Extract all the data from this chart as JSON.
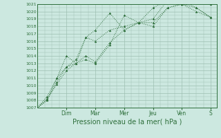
{
  "title": "",
  "xlabel": "Pression niveau de la mer( hPa )",
  "ylabel": "",
  "bg_color": "#cce8e0",
  "grid_color": "#9dbfb2",
  "line_color": "#2d6e3a",
  "ylim": [
    1007,
    1021
  ],
  "xlim": [
    0,
    6.2
  ],
  "yticks": [
    1007,
    1008,
    1009,
    1010,
    1011,
    1012,
    1013,
    1014,
    1015,
    1016,
    1017,
    1018,
    1019,
    1020,
    1021
  ],
  "day_labels": [
    "Dim",
    "Mar",
    "Mer",
    "Jeu",
    "Ven",
    "S"
  ],
  "day_positions": [
    1.0,
    2.0,
    3.0,
    4.0,
    5.0,
    6.0
  ],
  "lines": [
    {
      "x": [
        0.0,
        0.33,
        0.67,
        1.0,
        1.33,
        1.67,
        2.0,
        2.5,
        3.0,
        3.5,
        4.0,
        4.5,
        5.0,
        5.5,
        6.0
      ],
      "y": [
        1007.0,
        1008.2,
        1010.2,
        1012.0,
        1013.0,
        1014.0,
        1013.2,
        1015.8,
        1017.5,
        1018.5,
        1018.5,
        1020.5,
        1021.0,
        1021.2,
        1021.0
      ]
    },
    {
      "x": [
        0.0,
        0.33,
        0.67,
        1.0,
        1.33,
        1.67,
        2.0,
        2.5,
        3.0,
        3.5,
        4.0,
        4.5,
        5.0,
        5.5,
        6.0
      ],
      "y": [
        1007.0,
        1008.0,
        1011.0,
        1012.5,
        1013.5,
        1016.5,
        1017.5,
        1019.8,
        1017.5,
        1018.5,
        1018.0,
        1020.5,
        1021.0,
        1020.0,
        1019.2
      ]
    },
    {
      "x": [
        0.0,
        0.33,
        0.67,
        1.0,
        1.33,
        1.67,
        2.0,
        2.5,
        3.0,
        3.5,
        4.0,
        4.5,
        5.0,
        5.5,
        6.0
      ],
      "y": [
        1007.0,
        1008.0,
        1010.5,
        1012.5,
        1013.0,
        1013.5,
        1013.0,
        1015.5,
        1019.5,
        1018.5,
        1019.0,
        1021.5,
        1021.5,
        1020.5,
        1019.2
      ]
    },
    {
      "x": [
        0.0,
        0.33,
        0.67,
        1.0,
        1.33,
        1.67,
        2.0,
        2.5,
        3.0,
        3.5,
        4.0,
        4.5,
        5.0,
        5.5,
        6.0
      ],
      "y": [
        1007.0,
        1008.5,
        1011.0,
        1014.0,
        1013.0,
        1016.5,
        1016.0,
        1017.5,
        1018.0,
        1018.5,
        1020.5,
        1021.5,
        1021.0,
        1020.5,
        1019.2
      ]
    }
  ],
  "xlabel_fontsize": 7,
  "ytick_fontsize": 4.5,
  "xtick_fontsize": 5.5
}
